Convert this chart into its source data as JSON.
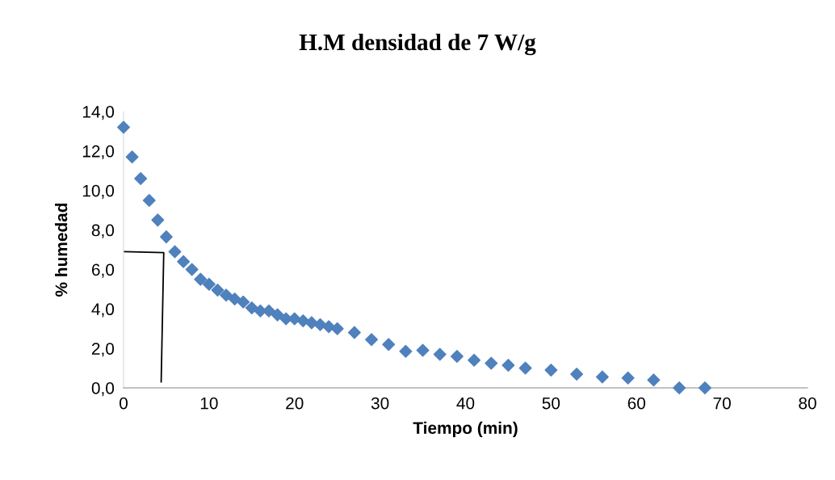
{
  "chart_data": {
    "type": "scatter",
    "title": "H.M densidad de 7 W/g",
    "xlabel": "Tiempo (min)",
    "ylabel": "% humedad",
    "series": [
      {
        "color": "#4f81bd",
        "marker": "diamond",
        "x": [
          0,
          1,
          2,
          3,
          4,
          5,
          6,
          7,
          8,
          9,
          10,
          11,
          12,
          13,
          14,
          15,
          16,
          17,
          18,
          19,
          20,
          21,
          22,
          23,
          24,
          25,
          27,
          29,
          31,
          33,
          35,
          37,
          39,
          41,
          43,
          45,
          47,
          50,
          53,
          56,
          59,
          62,
          65,
          68
        ],
        "values": [
          13.2,
          11.7,
          10.6,
          9.5,
          8.5,
          7.65,
          6.9,
          6.4,
          6.0,
          5.5,
          5.25,
          4.95,
          4.7,
          4.5,
          4.35,
          4.05,
          3.9,
          3.9,
          3.7,
          3.5,
          3.5,
          3.4,
          3.3,
          3.2,
          3.1,
          3.0,
          2.8,
          2.45,
          2.2,
          1.85,
          1.9,
          1.7,
          1.6,
          1.4,
          1.25,
          1.15,
          1.0,
          0.9,
          0.7,
          0.55,
          0.5,
          0.4,
          0.0,
          0.0
        ]
      },
      {
        "type": "line",
        "color": "#000000",
        "marker": "none",
        "x": [
          0,
          4.7,
          4.4
        ],
        "values": [
          6.9,
          6.85,
          0.3
        ]
      }
    ],
    "xlim": [
      0,
      80
    ],
    "xticks": [
      0,
      10,
      20,
      30,
      40,
      50,
      60,
      70,
      80
    ],
    "ylim": [
      0,
      14
    ],
    "yticks": [
      {
        "value": 0,
        "label": "0,0"
      },
      {
        "value": 2,
        "label": "2,0"
      },
      {
        "value": 4,
        "label": "4,0"
      },
      {
        "value": 6,
        "label": "6,0"
      },
      {
        "value": 8,
        "label": "8,0"
      },
      {
        "value": 10,
        "label": "10,0"
      },
      {
        "value": 12,
        "label": "12,0"
      },
      {
        "value": 14,
        "label": "14,0"
      }
    ],
    "grid": false,
    "legend": false
  }
}
